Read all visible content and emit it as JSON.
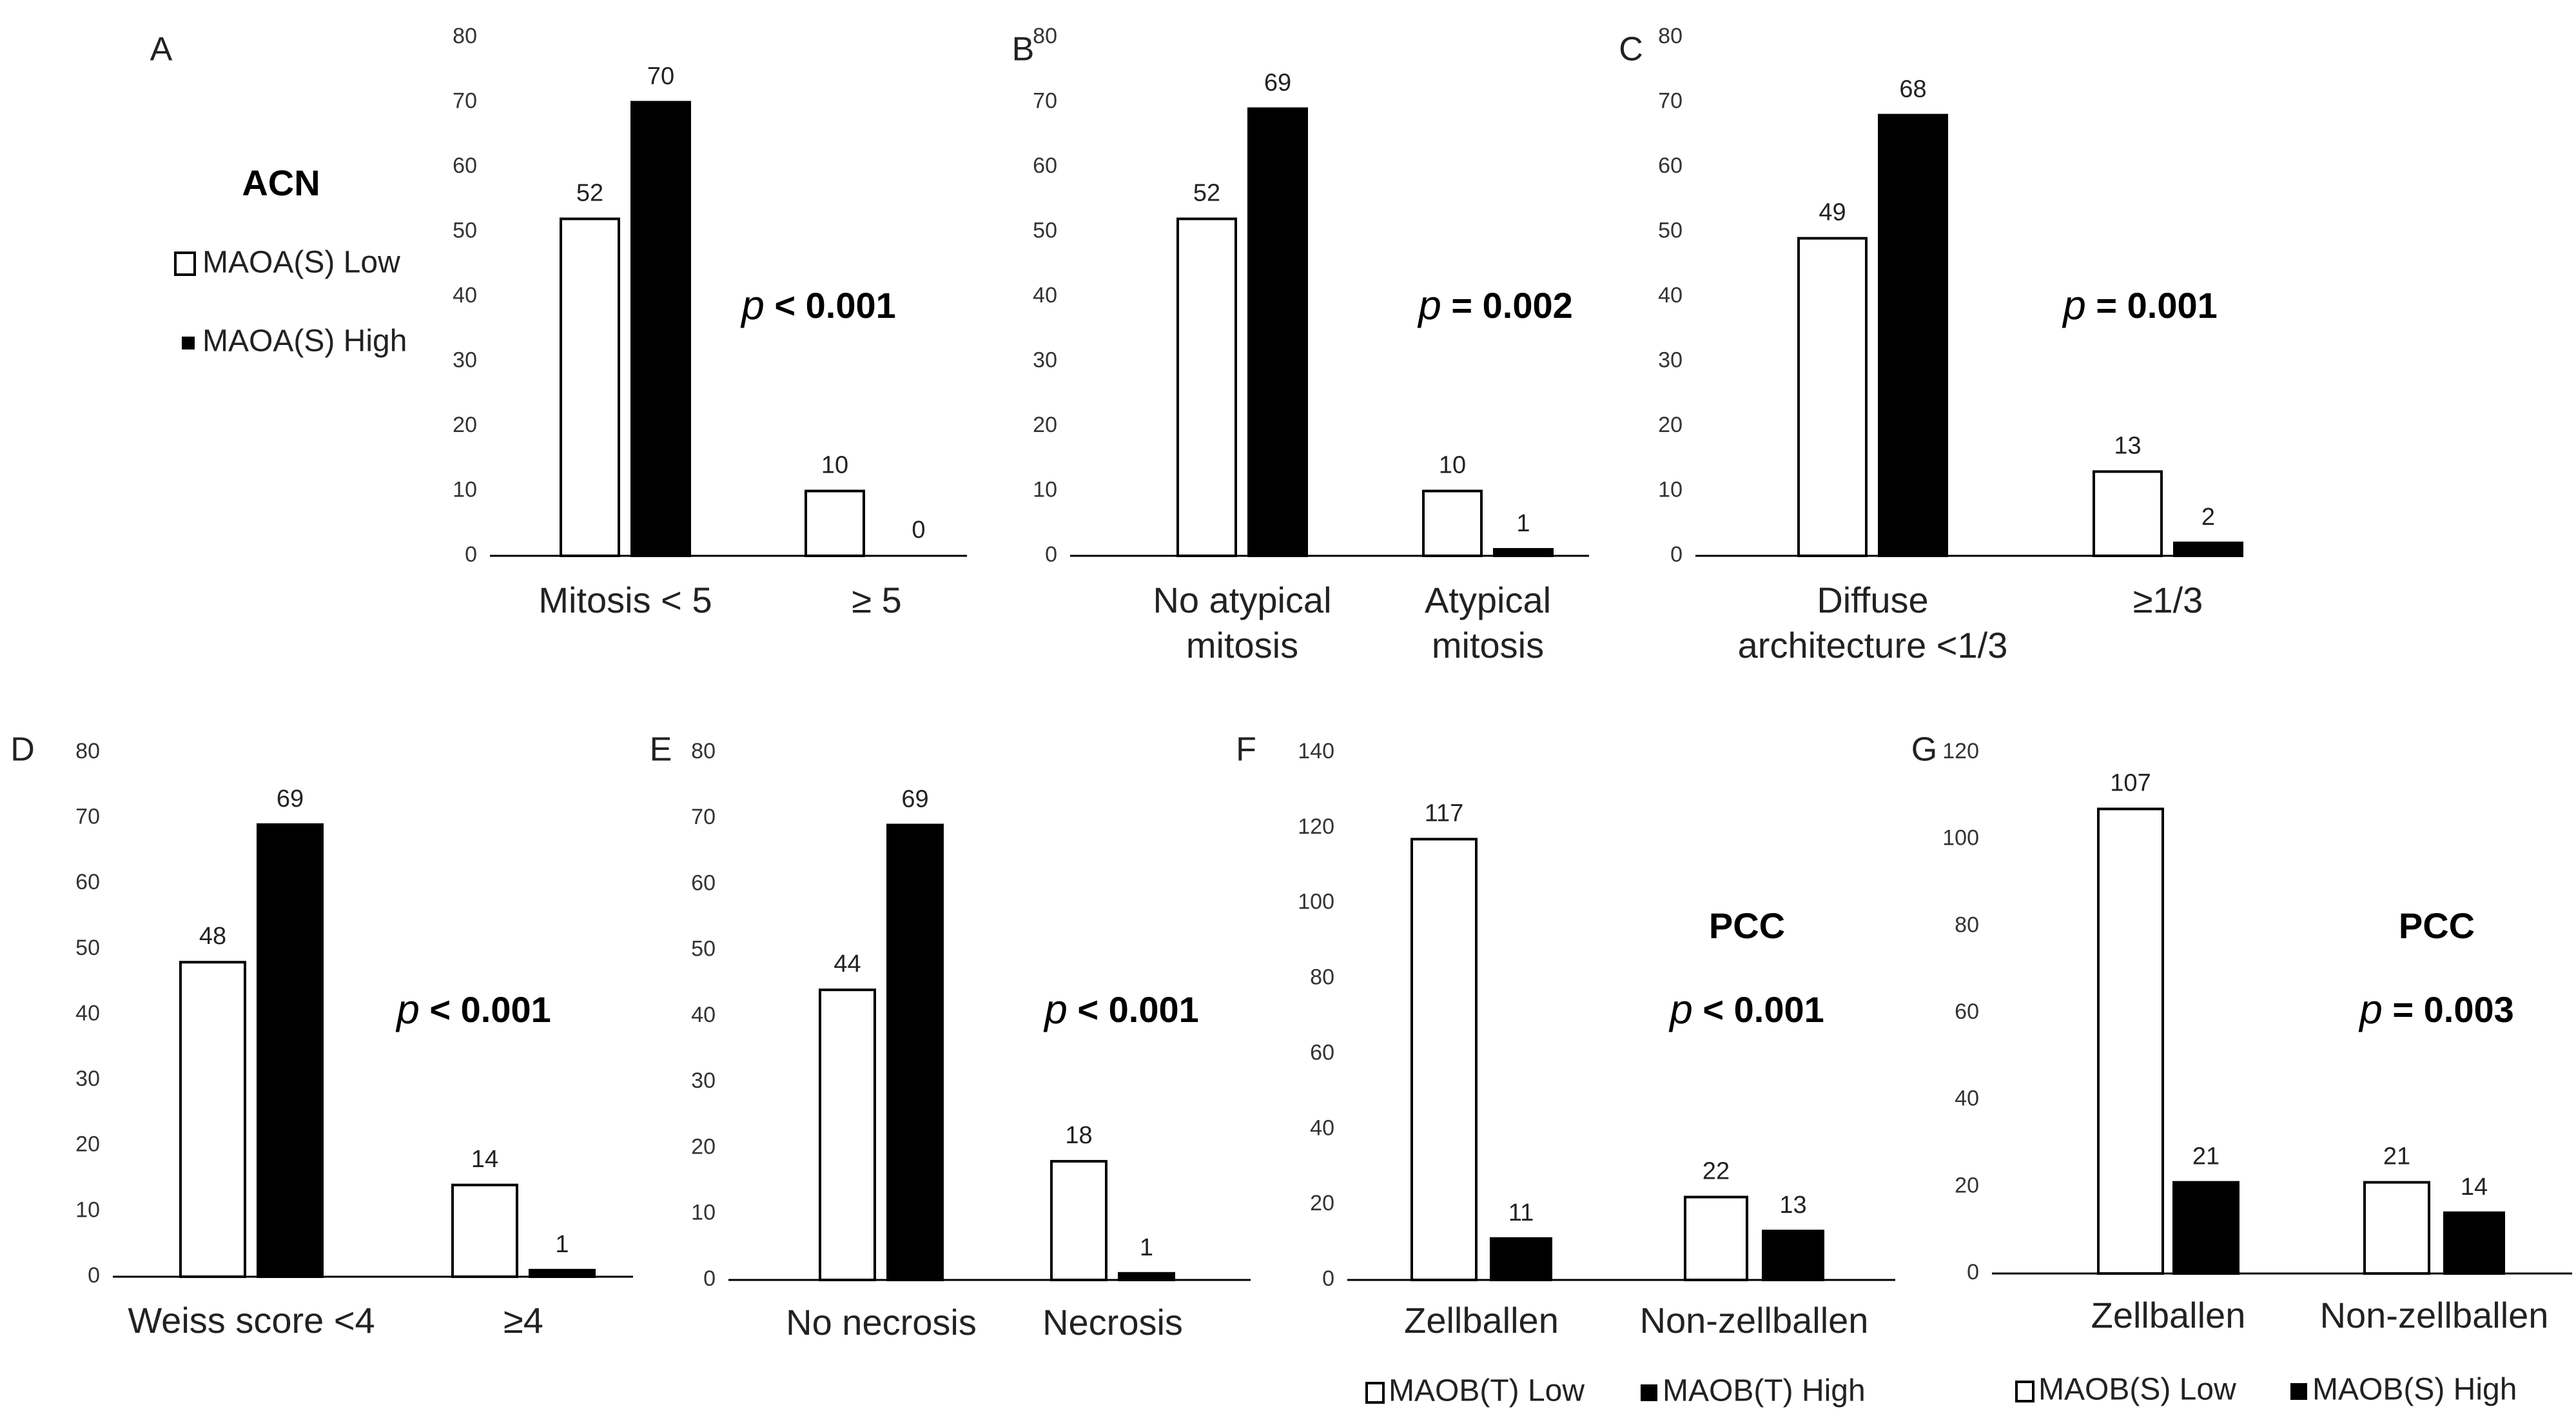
{
  "chart_data": [
    {
      "panel": "A",
      "type": "bar",
      "group_title": "ACN",
      "ylim": [
        0,
        80
      ],
      "yticks": [
        0,
        10,
        20,
        30,
        40,
        50,
        60,
        70,
        80
      ],
      "categories": [
        [
          "Mitosis < 5"
        ],
        [
          "≥ 5"
        ]
      ],
      "series": [
        {
          "name": "MAOA(S) Low",
          "values": [
            52,
            10
          ]
        },
        {
          "name": "MAOA(S) High",
          "values": [
            70,
            0
          ]
        }
      ],
      "legend": [
        "MAOA(S) Low",
        "MAOA(S) High"
      ],
      "legend_position": "left",
      "p_label": "p",
      "p_text": "< 0.001"
    },
    {
      "panel": "B",
      "type": "bar",
      "ylim": [
        0,
        80
      ],
      "yticks": [
        0,
        10,
        20,
        30,
        40,
        50,
        60,
        70,
        80
      ],
      "categories": [
        [
          "No atypical",
          "mitosis"
        ],
        [
          "Atypical",
          "mitosis"
        ]
      ],
      "series": [
        {
          "name": "MAOA(S) Low",
          "values": [
            52,
            10
          ]
        },
        {
          "name": "MAOA(S) High",
          "values": [
            69,
            1
          ]
        }
      ],
      "p_label": "p",
      "p_text": "= 0.002"
    },
    {
      "panel": "C",
      "type": "bar",
      "ylim": [
        0,
        80
      ],
      "yticks": [
        0,
        10,
        20,
        30,
        40,
        50,
        60,
        70,
        80
      ],
      "categories": [
        [
          "Diffuse",
          "architecture <1/3"
        ],
        [
          "≥1/3"
        ]
      ],
      "series": [
        {
          "name": "MAOA(S) Low",
          "values": [
            49,
            13
          ]
        },
        {
          "name": "MAOA(S) High",
          "values": [
            68,
            2
          ]
        }
      ],
      "p_label": "p",
      "p_text": "= 0.001"
    },
    {
      "panel": "D",
      "type": "bar",
      "ylim": [
        0,
        80
      ],
      "yticks": [
        0,
        10,
        20,
        30,
        40,
        50,
        60,
        70,
        80
      ],
      "categories": [
        [
          "Weiss score <4"
        ],
        [
          "≥4"
        ]
      ],
      "series": [
        {
          "name": "MAOA(S) Low",
          "values": [
            48,
            14
          ]
        },
        {
          "name": "MAOA(S) High",
          "values": [
            69,
            1
          ]
        }
      ],
      "p_label": "p",
      "p_text": "< 0.001"
    },
    {
      "panel": "E",
      "type": "bar",
      "ylim": [
        0,
        80
      ],
      "yticks": [
        0,
        10,
        20,
        30,
        40,
        50,
        60,
        70,
        80
      ],
      "categories": [
        [
          "No necrosis"
        ],
        [
          "Necrosis"
        ]
      ],
      "series": [
        {
          "name": "MAOA(S) Low",
          "values": [
            44,
            18
          ]
        },
        {
          "name": "MAOA(S) High",
          "values": [
            69,
            1
          ]
        }
      ],
      "p_label": "p",
      "p_text": "< 0.001"
    },
    {
      "panel": "F",
      "type": "bar",
      "group_title": "PCC",
      "ylim": [
        0,
        140
      ],
      "yticks": [
        0,
        20,
        40,
        60,
        80,
        100,
        120,
        140
      ],
      "categories": [
        [
          "Zellballen"
        ],
        [
          "Non-zellballen"
        ]
      ],
      "series": [
        {
          "name": "MAOB(T) Low",
          "values": [
            117,
            22
          ]
        },
        {
          "name": "MAOB(T) High",
          "values": [
            11,
            13
          ]
        }
      ],
      "legend": [
        "MAOB(T) Low",
        "MAOB(T) High"
      ],
      "legend_position": "bottom",
      "p_label": "p",
      "p_text": "< 0.001"
    },
    {
      "panel": "G",
      "type": "bar",
      "group_title": "PCC",
      "ylim": [
        0,
        120
      ],
      "yticks": [
        0,
        20,
        40,
        60,
        80,
        100,
        120
      ],
      "categories": [
        [
          "Zellballen"
        ],
        [
          "Non-zellballen"
        ]
      ],
      "series": [
        {
          "name": "MAOB(S) Low",
          "values": [
            107,
            21
          ]
        },
        {
          "name": "MAOB(S) High",
          "values": [
            21,
            14
          ]
        }
      ],
      "legend": [
        "MAOB(S) Low",
        "MAOB(S) High"
      ],
      "legend_position": "bottom",
      "p_label": "p",
      "p_text": "= 0.003"
    }
  ]
}
